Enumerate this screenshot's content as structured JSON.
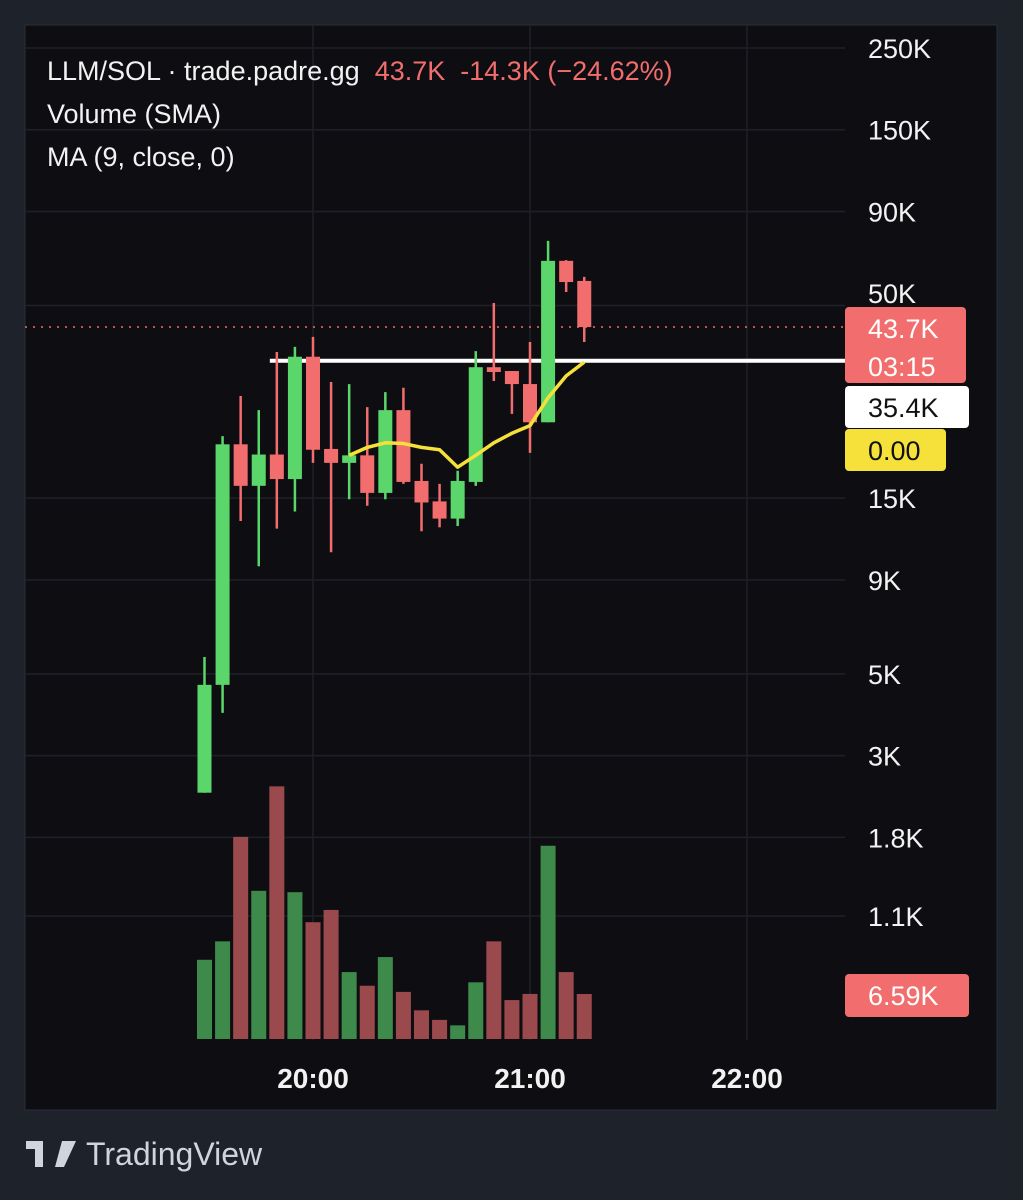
{
  "legend": {
    "symbol": "LLM/SOL · trade.padre.gg",
    "last_price": "43.7K",
    "change": "-14.3K (−24.62%)",
    "indicator_volume": "Volume (SMA)",
    "indicator_ma": "MA (9, close, 0)"
  },
  "branding": {
    "name": "TradingView",
    "logo_icon": "tradingview-logo-icon"
  },
  "colors": {
    "up": "#5ad66b",
    "down": "#f26d6d",
    "volume_up": "#3d8a4a",
    "volume_down": "#9a4a4d",
    "ma": "#f5e13a",
    "background": "#0e0e12",
    "frame": "#1e222b"
  },
  "chart_data": {
    "type": "candlestick",
    "interval_minutes": 5,
    "y_scale": "log",
    "ylim": [
      2000,
      250000
    ],
    "y_ticks": [
      {
        "value": 250000,
        "label": "250K"
      },
      {
        "value": 150000,
        "label": "150K"
      },
      {
        "value": 90000,
        "label": "90K"
      },
      {
        "value": 50000,
        "label": "50K"
      },
      {
        "value": 15000,
        "label": "15K"
      },
      {
        "value": 9000,
        "label": "9K"
      },
      {
        "value": 5000,
        "label": "5K"
      },
      {
        "value": 3000,
        "label": "3K"
      },
      {
        "value": 1800,
        "label": "1.8K"
      },
      {
        "value": 1100,
        "label": "1.1K"
      }
    ],
    "x_ticks": [
      "20:00",
      "21:00",
      "22:00"
    ],
    "grid": true,
    "candles": [
      {
        "t": "19:30",
        "o": 2380,
        "h": 5560,
        "l": 2380,
        "c": 4670,
        "v": 11.6
      },
      {
        "t": "19:35",
        "o": 4670,
        "h": 22100,
        "l": 3920,
        "c": 21000,
        "v": 14.3
      },
      {
        "t": "19:40",
        "o": 21000,
        "h": 28400,
        "l": 13000,
        "c": 16200,
        "v": 29.6
      },
      {
        "t": "19:45",
        "o": 16200,
        "h": 26000,
        "l": 9800,
        "c": 19700,
        "v": 21.7
      },
      {
        "t": "19:50",
        "o": 19700,
        "h": 37400,
        "l": 12400,
        "c": 16900,
        "v": 37.0
      },
      {
        "t": "19:55",
        "o": 16900,
        "h": 38600,
        "l": 13800,
        "c": 36300,
        "v": 21.5
      },
      {
        "t": "20:00",
        "o": 36300,
        "h": 41100,
        "l": 18700,
        "c": 20300,
        "v": 17.1
      },
      {
        "t": "20:05",
        "o": 20400,
        "h": 31000,
        "l": 10700,
        "c": 18700,
        "v": 18.9
      },
      {
        "t": "20:10",
        "o": 18700,
        "h": 30600,
        "l": 14900,
        "c": 19600,
        "v": 9.8
      },
      {
        "t": "20:15",
        "o": 19600,
        "h": 26500,
        "l": 14300,
        "c": 15500,
        "v": 7.8
      },
      {
        "t": "20:20",
        "o": 15500,
        "h": 29100,
        "l": 14900,
        "c": 26000,
        "v": 12.0
      },
      {
        "t": "20:25",
        "o": 26000,
        "h": 29900,
        "l": 16400,
        "c": 16600,
        "v": 6.9
      },
      {
        "t": "20:30",
        "o": 16700,
        "h": 18600,
        "l": 12200,
        "c": 14600,
        "v": 4.2
      },
      {
        "t": "20:35",
        "o": 14700,
        "h": 16400,
        "l": 12500,
        "c": 13200,
        "v": 2.8
      },
      {
        "t": "20:40",
        "o": 13200,
        "h": 17800,
        "l": 12600,
        "c": 16700,
        "v": 2.0
      },
      {
        "t": "20:45",
        "o": 16600,
        "h": 37600,
        "l": 16200,
        "c": 34000,
        "v": 8.3
      },
      {
        "t": "20:50",
        "o": 34000,
        "h": 50800,
        "l": 31200,
        "c": 33000,
        "v": 14.3
      },
      {
        "t": "20:55",
        "o": 33200,
        "h": 33200,
        "l": 25400,
        "c": 30600,
        "v": 5.7
      },
      {
        "t": "21:00",
        "o": 30600,
        "h": 39800,
        "l": 19900,
        "c": 24100,
        "v": 6.6
      },
      {
        "t": "21:05",
        "o": 24100,
        "h": 74900,
        "l": 24100,
        "c": 66100,
        "v": 28.3
      },
      {
        "t": "21:10",
        "o": 66100,
        "h": 66400,
        "l": 54400,
        "c": 57900,
        "v": 9.8
      },
      {
        "t": "21:15",
        "o": 58300,
        "h": 59800,
        "l": 39800,
        "c": 43700,
        "v": 6.59
      }
    ],
    "volume_unit": "K",
    "ma": [
      {
        "t": "20:10",
        "value": 19600
      },
      {
        "t": "20:15",
        "value": 20600
      },
      {
        "t": "20:20",
        "value": 21200
      },
      {
        "t": "20:25",
        "value": 21100
      },
      {
        "t": "20:30",
        "value": 20600
      },
      {
        "t": "20:35",
        "value": 20300
      },
      {
        "t": "20:40",
        "value": 18200
      },
      {
        "t": "20:45",
        "value": 19600
      },
      {
        "t": "20:50",
        "value": 21200
      },
      {
        "t": "20:55",
        "value": 22500
      },
      {
        "t": "21:00",
        "value": 23600
      },
      {
        "t": "21:05",
        "value": 28100
      },
      {
        "t": "21:10",
        "value": 32200
      },
      {
        "t": "21:15",
        "value": 35100
      }
    ],
    "horizontal_line": {
      "value": 35400,
      "label": "35.4K",
      "start": "19:50"
    },
    "last_price_line": {
      "value": 43700,
      "label": "43.7K",
      "countdown": "03:15"
    },
    "ma_label": "0.00",
    "volume_label": "6.59K"
  }
}
